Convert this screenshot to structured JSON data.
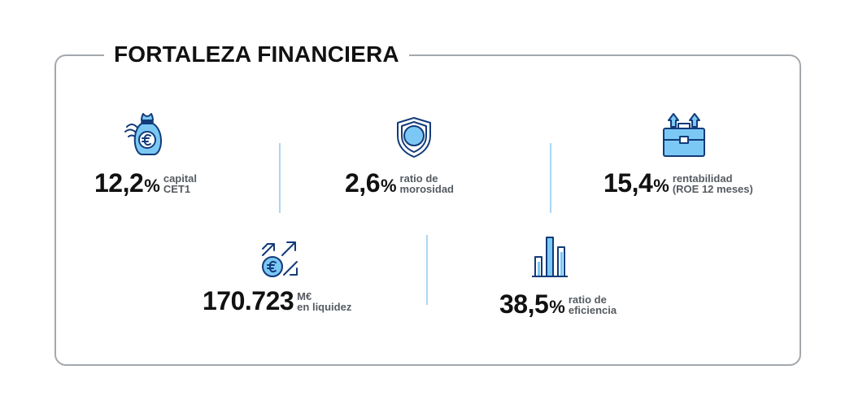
{
  "title": "FORTALEZA FINANCIERA",
  "colors": {
    "icon_fill": "#7cc8f5",
    "icon_stroke": "#123b7a",
    "divider": "#a9d6f5",
    "frame": "#a3a8ad"
  },
  "metrics": [
    {
      "icon": "money-bag-euro-icon",
      "value": "12,2",
      "unit": "%",
      "label_line1": "capital",
      "label_line2": "CET1"
    },
    {
      "icon": "shield-icon",
      "value": "2,6",
      "unit": "%",
      "label_line1": "ratio de",
      "label_line2": "morosidad"
    },
    {
      "icon": "briefcase-arrows-icon",
      "value": "15,4",
      "unit": "%",
      "label_line1": "rentabilidad",
      "label_line2": "(ROE 12 meses)"
    },
    {
      "icon": "euro-coin-arrows-icon",
      "value": "170.723",
      "unit": "",
      "label_line1": "M€",
      "label_line2": "en liquidez"
    },
    {
      "icon": "bar-chart-icon",
      "value": "38,5",
      "unit": "%",
      "label_line1": "ratio de",
      "label_line2": "eficiencia"
    }
  ]
}
